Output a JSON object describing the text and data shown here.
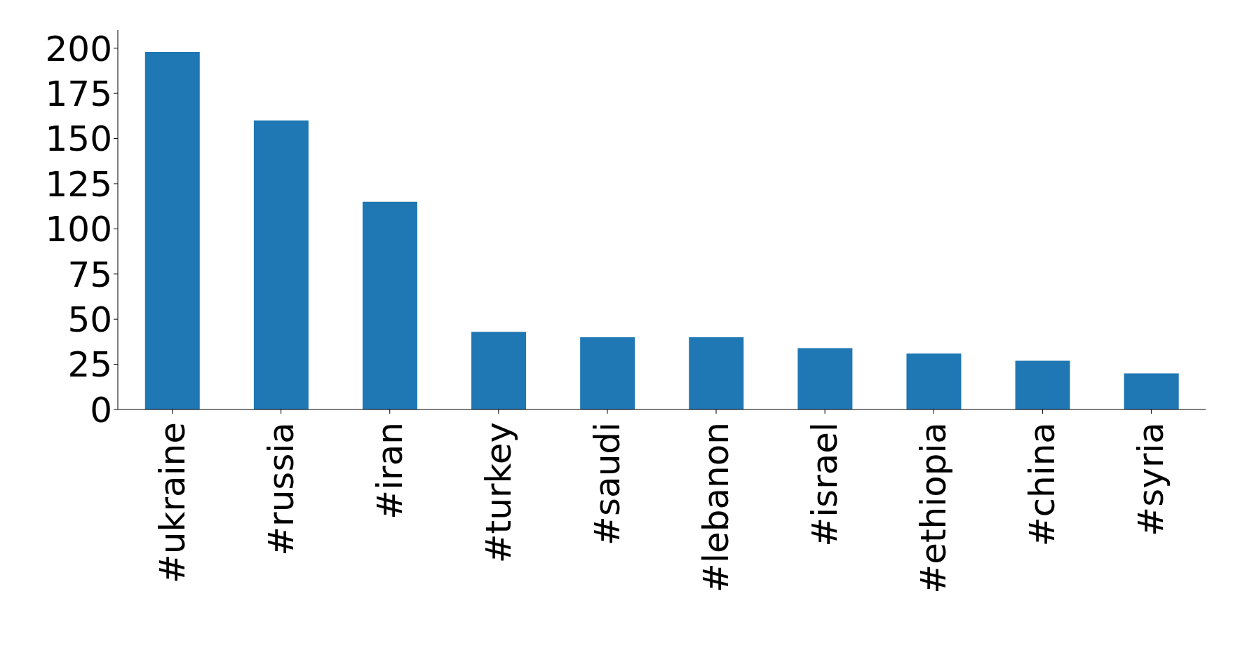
{
  "chart_data": {
    "type": "bar",
    "categories": [
      "#ukraine",
      "#russia",
      "#iran",
      "#turkey",
      "#saudi",
      "#lebanon",
      "#israel",
      "#ethiopia",
      "#china",
      "#syria"
    ],
    "values": [
      198,
      160,
      115,
      43,
      40,
      40,
      34,
      31,
      27,
      20
    ],
    "color": "#1f77b4",
    "ylim": [
      0,
      210
    ],
    "yticks": [
      0,
      25,
      50,
      75,
      100,
      125,
      150,
      175,
      200
    ],
    "grid": false,
    "legend": false
  }
}
